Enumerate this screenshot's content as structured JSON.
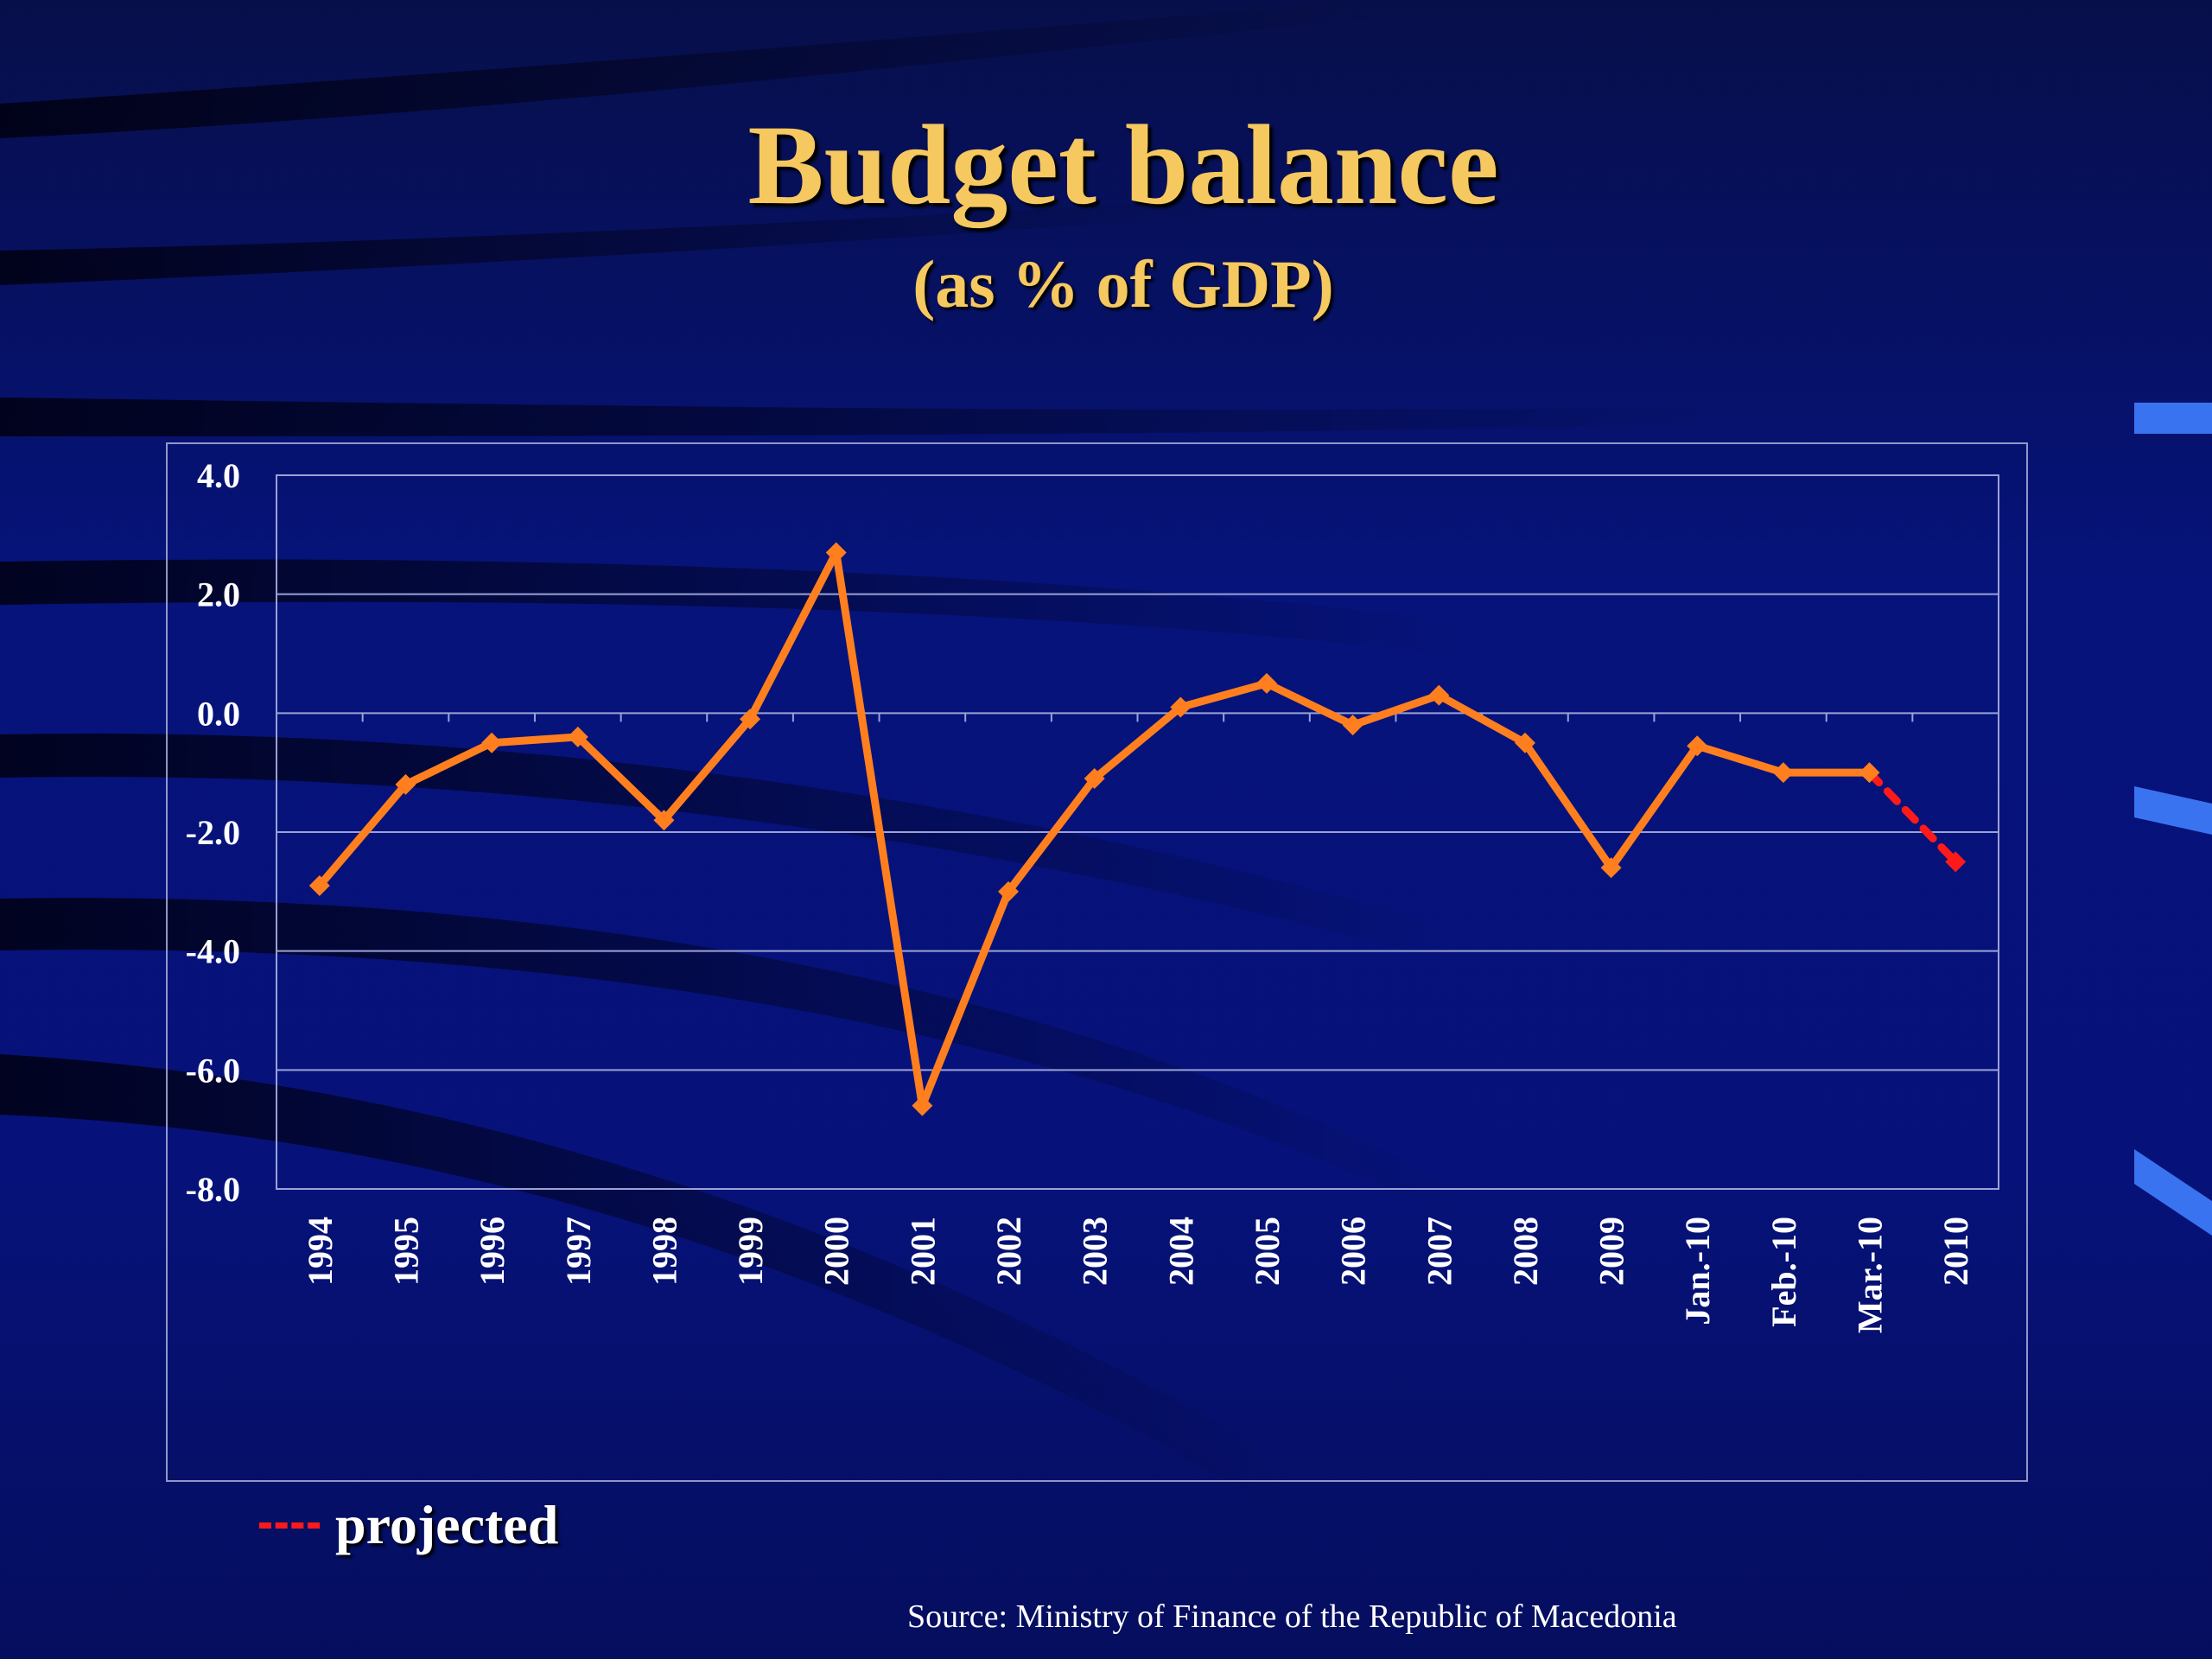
{
  "slide": {
    "title": "Budget balance",
    "subtitle": "(as % of GDP)",
    "legend_label": "projected",
    "source": "Source: Ministry of Finance of the Republic of Macedonia"
  },
  "colors": {
    "actual_line": "#ff7f1f",
    "projected_line": "#ff1a1a",
    "axis_text": "#ffffff",
    "gridline": "#9aa2d6",
    "title": "#f6c860"
  },
  "chart_data": {
    "type": "line",
    "title": "Budget balance",
    "subtitle": "(as % of GDP)",
    "xlabel": "",
    "ylabel": "",
    "categories": [
      "1994",
      "1995",
      "1996",
      "1997",
      "1998",
      "1999",
      "2000",
      "2001",
      "2002",
      "2003",
      "2004",
      "2005",
      "2006",
      "2007",
      "2008",
      "2009",
      "Jan.-10",
      "Feb.-10",
      "Mar.-10",
      "2010"
    ],
    "series": [
      {
        "name": "",
        "style": "solid",
        "values": [
          -2.9,
          -1.2,
          -0.5,
          -0.4,
          -1.8,
          -0.1,
          2.7,
          -6.6,
          -3.0,
          -1.1,
          0.1,
          0.5,
          -0.2,
          0.3,
          -0.5,
          -2.6,
          -0.55,
          -1.0,
          -1.0,
          null
        ]
      },
      {
        "name": "projected",
        "style": "dashed",
        "values": [
          null,
          null,
          null,
          null,
          null,
          null,
          null,
          null,
          null,
          null,
          null,
          null,
          null,
          null,
          null,
          null,
          null,
          null,
          -1.0,
          -2.5
        ]
      }
    ],
    "yticks": [
      "4.0",
      "2.0",
      "0.0",
      "-2.0",
      "-4.0",
      "-6.0",
      "-8.0"
    ],
    "ylim": [
      -8,
      4
    ],
    "grid": true,
    "legend_position": "bottom-left"
  }
}
